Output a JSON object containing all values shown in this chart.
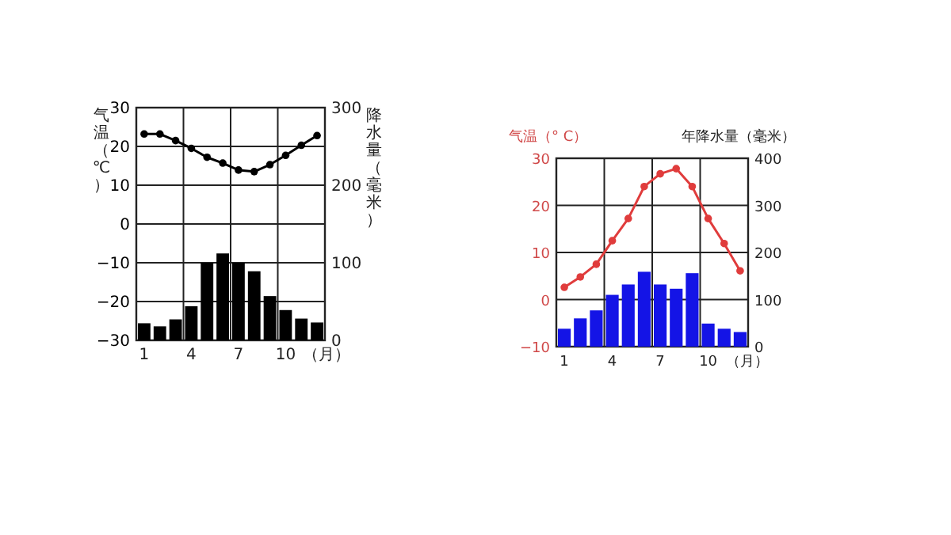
{
  "chart_data": [
    {
      "type": "bar",
      "ylabel": "气温（℃）",
      "y2label": "降水量（毫米）",
      "annotations": [
        "（月）"
      ],
      "categories": [
        "1",
        null,
        null,
        "4",
        null,
        null,
        "7",
        null,
        null,
        "10",
        null,
        null
      ],
      "ylim": [
        -30,
        30
      ],
      "yticks": [
        -30,
        -20,
        -10,
        0,
        10,
        20,
        30
      ],
      "y2lim": [
        0,
        300
      ],
      "y2ticks": [
        0,
        100,
        200,
        300
      ],
      "grid": true,
      "series": [
        {
          "axis": "y2",
          "color": "#000000",
          "values": [
            22,
            18,
            27,
            44,
            100,
            112,
            100,
            89,
            57,
            39,
            28,
            23
          ]
        },
        {
          "type": "line",
          "axis": "y",
          "color": "#000000",
          "marker": "circle",
          "values": [
            23.2,
            23.2,
            21.5,
            19.5,
            17.2,
            15.7,
            13.9,
            13.5,
            15.3,
            17.7,
            20.3,
            22.8
          ]
        }
      ]
    },
    {
      "type": "bar",
      "ylabel": "气温（° C）",
      "y2label": "年降水量（毫米）",
      "annotations": [
        "（月）"
      ],
      "categories": [
        "1",
        null,
        null,
        "4",
        null,
        null,
        "7",
        null,
        null,
        "10",
        null,
        null
      ],
      "ylim": [
        -10,
        30
      ],
      "yticks": [
        -10,
        0,
        10,
        20,
        30
      ],
      "y2lim": [
        0,
        400
      ],
      "y2ticks": [
        0,
        100,
        200,
        300,
        400
      ],
      "grid": true,
      "series": [
        {
          "axis": "y2",
          "color": "#1414e6",
          "values": [
            38,
            60,
            77,
            110,
            132,
            159,
            132,
            123,
            156,
            49,
            38,
            31
          ]
        },
        {
          "type": "line",
          "axis": "y",
          "color": "#e03c3c",
          "marker": "circle",
          "values": [
            2.6,
            4.8,
            7.5,
            12.5,
            17.2,
            24,
            26.7,
            27.8,
            24,
            17.2,
            11.9,
            6.1
          ]
        }
      ]
    }
  ]
}
